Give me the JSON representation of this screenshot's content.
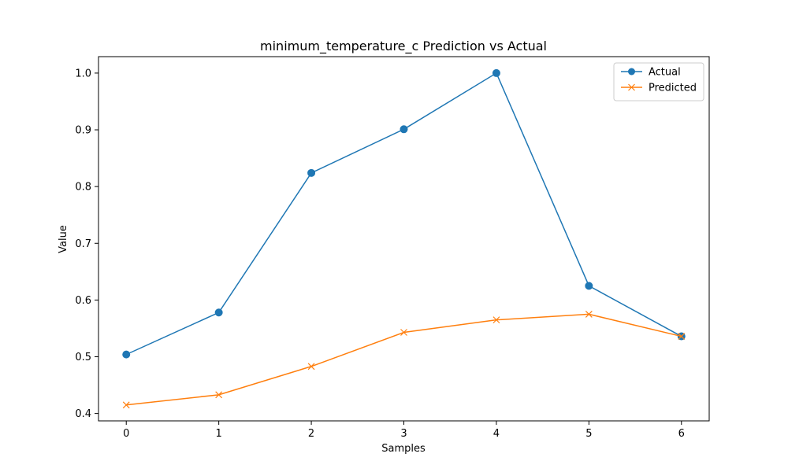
{
  "chart_data": {
    "type": "line",
    "title": "minimum_temperature_c Prediction vs Actual",
    "xlabel": "Samples",
    "ylabel": "Value",
    "x": [
      0,
      1,
      2,
      3,
      4,
      5,
      6
    ],
    "xlim": [
      -0.3,
      6.3
    ],
    "ylim": [
      0.387,
      1.029
    ],
    "xticks": [
      0,
      1,
      2,
      3,
      4,
      5,
      6
    ],
    "yticks": [
      0.4,
      0.5,
      0.6,
      0.7,
      0.8,
      0.9,
      1.0
    ],
    "ytick_labels": [
      "0.4",
      "0.5",
      "0.6",
      "0.7",
      "0.8",
      "0.9",
      "1.0"
    ],
    "grid": false,
    "legend": "top-right",
    "series": [
      {
        "name": "Actual",
        "values": [
          0.504,
          0.578,
          0.824,
          0.901,
          1.0,
          0.625,
          0.536
        ],
        "color": "#1f77b4",
        "marker": "circle"
      },
      {
        "name": "Predicted",
        "values": [
          0.415,
          0.433,
          0.483,
          0.543,
          0.565,
          0.575,
          0.536
        ],
        "color": "#ff7f0e",
        "marker": "x"
      }
    ]
  }
}
